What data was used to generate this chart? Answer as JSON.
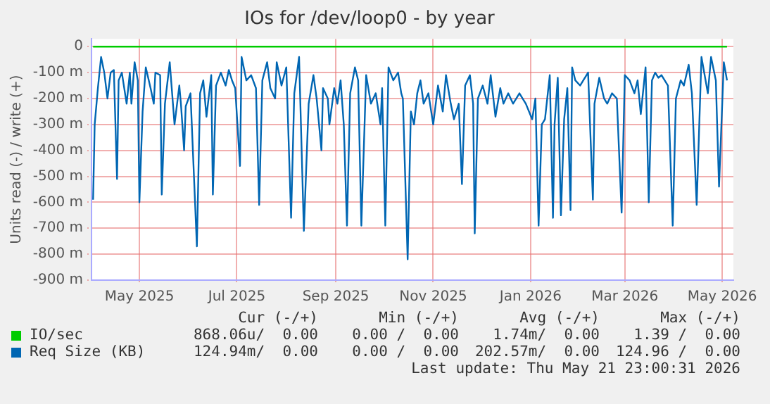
{
  "chart_data": {
    "type": "line",
    "title": "IOs for /dev/loop0 - by year",
    "ylabel": "Units read (-) / write (+)",
    "xlim": [
      "2025-04-01",
      "2026-05-08"
    ],
    "xticks": [
      {
        "value": "2025-05-01",
        "label": "May 2025"
      },
      {
        "value": "2025-07-01",
        "label": "Jul 2025"
      },
      {
        "value": "2025-09-01",
        "label": "Sep 2025"
      },
      {
        "value": "2025-11-01",
        "label": "Nov 2025"
      },
      {
        "value": "2026-01-01",
        "label": "Jan 2026"
      },
      {
        "value": "2026-03-01",
        "label": "Mar 2026"
      },
      {
        "value": "2026-05-01",
        "label": "May 2026"
      }
    ],
    "ylim": [
      -900,
      30
    ],
    "yticks": [
      {
        "value": -900,
        "label": "-900 m"
      },
      {
        "value": -800,
        "label": "-800 m"
      },
      {
        "value": -700,
        "label": "-700 m"
      },
      {
        "value": -600,
        "label": "-600 m"
      },
      {
        "value": -500,
        "label": "-500 m"
      },
      {
        "value": -400,
        "label": "-400 m"
      },
      {
        "value": -300,
        "label": "-300 m"
      },
      {
        "value": -200,
        "label": "-200 m"
      },
      {
        "value": -100,
        "label": "-100 m"
      },
      0
    ],
    "grid": true,
    "legend": "bottom",
    "marker": "none",
    "series": [
      {
        "name": "IO/sec",
        "color": "#00cc00",
        "x": [
          "2025-04-02",
          "2026-05-04"
        ],
        "values": [
          0,
          0
        ]
      },
      {
        "name": "Req Size (KB)",
        "color": "#0066b3",
        "x": [
          "2025-04-02",
          "2025-04-03",
          "2025-04-05",
          "2025-04-07",
          "2025-04-09",
          "2025-04-11",
          "2025-04-13",
          "2025-04-15",
          "2025-04-17",
          "2025-04-18",
          "2025-04-20",
          "2025-04-23",
          "2025-04-25",
          "2025-04-26",
          "2025-04-28",
          "2025-04-30",
          "2025-05-01",
          "2025-05-03",
          "2025-05-05",
          "2025-05-08",
          "2025-05-10",
          "2025-05-11",
          "2025-05-14",
          "2025-05-15",
          "2025-05-17",
          "2025-05-20",
          "2025-05-23",
          "2025-05-26",
          "2025-05-27",
          "2025-05-29",
          "2025-05-30",
          "2025-06-02",
          "2025-06-06",
          "2025-06-08",
          "2025-06-10",
          "2025-06-12",
          "2025-06-15",
          "2025-06-16",
          "2025-06-18",
          "2025-06-21",
          "2025-06-24",
          "2025-06-26",
          "2025-06-28",
          "2025-06-30",
          "2025-07-03",
          "2025-07-04",
          "2025-07-07",
          "2025-07-10",
          "2025-07-13",
          "2025-07-15",
          "2025-07-17",
          "2025-07-20",
          "2025-07-22",
          "2025-07-25",
          "2025-07-26",
          "2025-07-29",
          "2025-08-01",
          "2025-08-04",
          "2025-08-06",
          "2025-08-09",
          "2025-08-12",
          "2025-08-15",
          "2025-08-18",
          "2025-08-20",
          "2025-08-23",
          "2025-08-24",
          "2025-08-27",
          "2025-08-28",
          "2025-08-31",
          "2025-09-02",
          "2025-09-04",
          "2025-09-06",
          "2025-09-08",
          "2025-09-10",
          "2025-09-13",
          "2025-09-15",
          "2025-09-17",
          "2025-09-20",
          "2025-09-23",
          "2025-09-26",
          "2025-09-29",
          "2025-09-30",
          "2025-10-02",
          "2025-10-04",
          "2025-10-07",
          "2025-10-10",
          "2025-10-12",
          "2025-10-13",
          "2025-10-16",
          "2025-10-18",
          "2025-10-20",
          "2025-10-22",
          "2025-10-24",
          "2025-10-26",
          "2025-10-29",
          "2025-11-01",
          "2025-11-04",
          "2025-11-07",
          "2025-11-09",
          "2025-11-12",
          "2025-11-14",
          "2025-11-17",
          "2025-11-19",
          "2025-11-21",
          "2025-11-24",
          "2025-11-26",
          "2025-11-27",
          "2025-11-29",
          "2025-12-02",
          "2025-12-05",
          "2025-12-07",
          "2025-12-10",
          "2025-12-13",
          "2025-12-15",
          "2025-12-18",
          "2025-12-21",
          "2025-12-25",
          "2025-12-29",
          "2026-01-02",
          "2026-01-04",
          "2026-01-06",
          "2026-01-08",
          "2026-01-10",
          "2026-01-13",
          "2026-01-15",
          "2026-01-16",
          "2026-01-18",
          "2026-01-20",
          "2026-01-22",
          "2026-01-24",
          "2026-01-26",
          "2026-01-27",
          "2026-01-29",
          "2026-02-01",
          "2026-02-03",
          "2026-02-06",
          "2026-02-09",
          "2026-02-10",
          "2026-02-13",
          "2026-02-16",
          "2026-02-18",
          "2026-02-21",
          "2026-02-24",
          "2026-02-27",
          "2026-03-01",
          "2026-03-04",
          "2026-03-07",
          "2026-03-09",
          "2026-03-11",
          "2026-03-14",
          "2026-03-16",
          "2026-03-18",
          "2026-03-20",
          "2026-03-22",
          "2026-03-24",
          "2026-03-28",
          "2026-03-31",
          "2026-04-02",
          "2026-04-05",
          "2026-04-07",
          "2026-04-10",
          "2026-04-12",
          "2026-04-15",
          "2026-04-18",
          "2026-04-20",
          "2026-04-22",
          "2026-04-24",
          "2026-04-27",
          "2026-04-29",
          "2026-05-02",
          "2026-05-04"
        ],
        "values": [
          -590,
          -300,
          -160,
          -40,
          -100,
          -200,
          -100,
          -90,
          -510,
          -130,
          -100,
          -220,
          -100,
          -220,
          -60,
          -130,
          -600,
          -250,
          -80,
          -160,
          -220,
          -100,
          -110,
          -570,
          -220,
          -60,
          -300,
          -150,
          -220,
          -400,
          -230,
          -180,
          -770,
          -180,
          -130,
          -270,
          -110,
          -570,
          -150,
          -100,
          -150,
          -90,
          -130,
          -160,
          -460,
          -40,
          -130,
          -110,
          -160,
          -610,
          -130,
          -60,
          -160,
          -200,
          -60,
          -150,
          -80,
          -660,
          -180,
          -40,
          -710,
          -220,
          -110,
          -200,
          -400,
          -160,
          -200,
          -300,
          -160,
          -220,
          -130,
          -300,
          -690,
          -180,
          -80,
          -130,
          -690,
          -110,
          -220,
          -180,
          -300,
          -160,
          -690,
          -80,
          -130,
          -100,
          -180,
          -200,
          -820,
          -250,
          -300,
          -180,
          -130,
          -220,
          -180,
          -300,
          -150,
          -250,
          -110,
          -220,
          -280,
          -220,
          -530,
          -150,
          -110,
          -220,
          -720,
          -200,
          -150,
          -220,
          -110,
          -270,
          -160,
          -220,
          -180,
          -220,
          -180,
          -220,
          -280,
          -200,
          -690,
          -300,
          -280,
          -110,
          -660,
          -300,
          -120,
          -650,
          -280,
          -160,
          -630,
          -80,
          -130,
          -150,
          -130,
          -100,
          -590,
          -220,
          -120,
          -200,
          -220,
          -180,
          -200,
          -640,
          -110,
          -130,
          -180,
          -130,
          -260,
          -80,
          -600,
          -130,
          -100,
          -120,
          -110,
          -150,
          -690,
          -200,
          -130,
          -150,
          -70,
          -180,
          -610,
          -40,
          -110,
          -180,
          -40,
          -130,
          -540,
          -60,
          -130
        ]
      }
    ],
    "annotations": [
      "Cur (-/+)",
      "Min (-/+)",
      "Avg (-/+)",
      "Max (-/+)",
      "868.06u/  0.00",
      "0.00 /  0.00",
      "1.74m/  0.00",
      "1.39 /  0.00",
      "124.94m/  0.00",
      "0.00 /  0.00",
      "202.57m/  0.00",
      "124.96 /  0.00",
      "Last update: Thu May 21 23:00:31 2026"
    ]
  }
}
